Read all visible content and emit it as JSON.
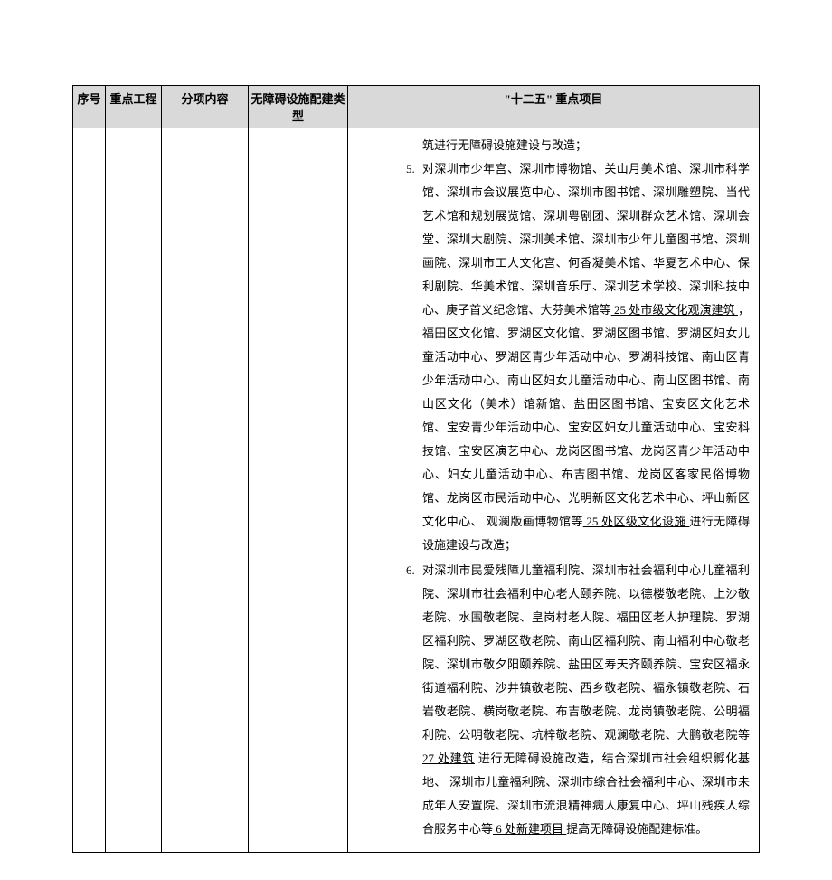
{
  "columns": {
    "c1": "序号",
    "c2": "重点工程",
    "c3": "分项内容",
    "c4": "无障碍设施配建类型",
    "c5": "\"十二五\" 重点项目"
  },
  "row": {
    "lead": "筑进行无障碍设施建设与改造；",
    "item5": {
      "num": "5.",
      "pre": "对深圳市少年宫、深圳市博物馆、关山月美术馆、深圳市科学馆、深圳市会议展览中心、深圳市图书馆、深圳雕塑院、当代艺术馆和规划展览馆、深圳粤剧团、深圳群众艺术馆、深圳会堂、深圳大剧院、深圳美术馆、深圳市少年儿童图书馆、深圳画院、深圳市工人文化宫、何香凝美术馆、华夏艺术中心、保利剧院、华美术馆、深圳音乐厅、深圳艺术学校、深圳科技中心、庚子首义纪念馆、大芬美术馆等",
      "u1": "   25 处市级文化观演建筑   ",
      "mid": "，福田区文化馆、罗湖区文化馆、罗湖区图书馆、罗湖区妇女儿童活动中心、罗湖区青少年活动中心、罗湖科技馆、南山区青少年活动中心、南山区妇女儿童活动中心、南山区图书馆、南山区文化（美术）馆新馆、盐田区图书馆、宝安区文化艺术馆、宝安青少年活动中心、宝安区妇女儿童活动中心、宝安科技馆、宝安区演艺中心、龙岗区图书馆、龙岗区青少年活动中心、妇女儿童活动中心、布吉图书馆、龙岗区客家民俗博物馆、龙岗区市民活动中心、光明新区文化艺术中心、坪山新区文化中心、    观澜版画博物馆等",
      "u2": "  25 处区级文化设施  ",
      "post": "进行无障碍设施建设与改造；"
    },
    "item6": {
      "num": "6.",
      "pre": "对深圳市民爱残障儿童福利院、深圳市社会福利中心儿童福利院、深圳市社会福利中心老人颐养院、以德楼敬老院、上沙敬老院、水围敬老院、皇岗村老人院、福田区老人护理院、罗湖区福利院、罗湖区敬老院、南山区福利院、南山福利中心敬老院、深圳市敬夕阳颐养院、盐田区寿天齐颐养院、宝安区福永街道福利院、沙井镇敬老院、西乡敬老院、福永镇敬老院、石岩敬老院、横岗敬老院、布吉敬老院、龙岗镇敬老院、公明福利院、公明敬老院、坑梓敬老院、观澜敬老院、大鹏敬老院等",
      "u1": "    27 处建筑",
      "mid": " 进行无障碍设施改造，结合深圳市社会组织孵化基地、    深圳市儿童福利院、深圳市综合社会福利中心、深圳市未成年人安置院、深圳市流浪精神病人康复中心、坪山残疾人综合服务中心等",
      "u2": " 6 处新建项目 ",
      "post": "提高无障碍设施配建标准。"
    }
  },
  "style": {
    "header_bg": "#d9d9d9",
    "border": "#000000",
    "font_size_th": 13,
    "font_size_td": 13,
    "line_height": 2.0
  }
}
